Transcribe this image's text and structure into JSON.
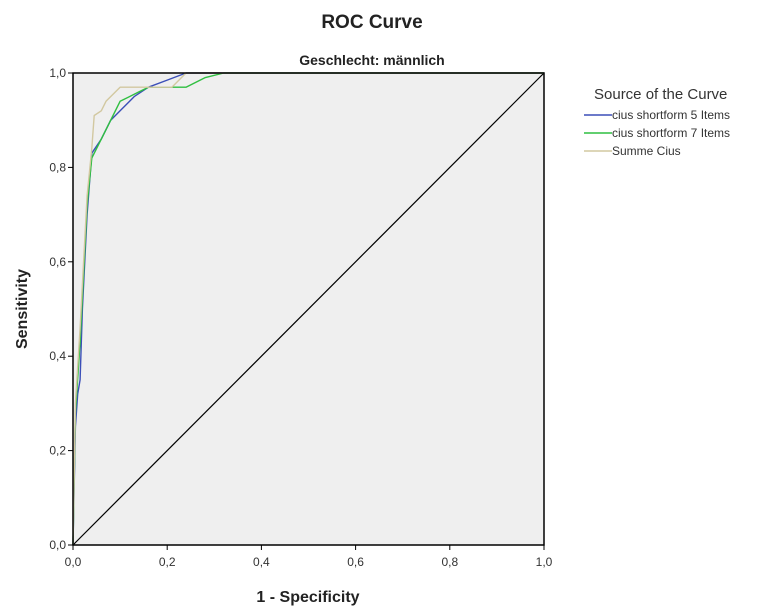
{
  "colors": {
    "plot_background": "#efefef",
    "frame": "#000000",
    "reference_line": "#000000"
  },
  "chart_data": {
    "type": "line",
    "title": "ROC Curve",
    "subtitle": "Geschlecht: männlich",
    "xlabel": "1 - Specificity",
    "ylabel": "Sensitivity",
    "xlim": [
      0,
      1
    ],
    "ylim": [
      0,
      1
    ],
    "x_ticks": [
      "0,0",
      "0,2",
      "0,4",
      "0,6",
      "0,8",
      "1,0"
    ],
    "y_ticks": [
      "0,0",
      "0,2",
      "0,4",
      "0,6",
      "0,8",
      "1,0"
    ],
    "grid": false,
    "diagonal_reference": true,
    "legend": {
      "title": "Source of the Curve",
      "position": "right"
    },
    "series": [
      {
        "name": "cius shortform 5 Items",
        "color": "#3b4fb8",
        "points": [
          [
            0,
            0
          ],
          [
            0.005,
            0.25
          ],
          [
            0.01,
            0.32
          ],
          [
            0.015,
            0.35
          ],
          [
            0.02,
            0.5
          ],
          [
            0.03,
            0.7
          ],
          [
            0.04,
            0.83
          ],
          [
            0.06,
            0.86
          ],
          [
            0.08,
            0.9
          ],
          [
            0.1,
            0.92
          ],
          [
            0.13,
            0.95
          ],
          [
            0.16,
            0.97
          ],
          [
            0.2,
            0.985
          ],
          [
            0.24,
            1.0
          ],
          [
            1.0,
            1.0
          ]
        ]
      },
      {
        "name": "cius shortform 7 Items",
        "color": "#2fbf40",
        "points": [
          [
            0,
            0
          ],
          [
            0.005,
            0.28
          ],
          [
            0.015,
            0.43
          ],
          [
            0.03,
            0.72
          ],
          [
            0.04,
            0.82
          ],
          [
            0.06,
            0.86
          ],
          [
            0.08,
            0.9
          ],
          [
            0.1,
            0.94
          ],
          [
            0.14,
            0.96
          ],
          [
            0.16,
            0.97
          ],
          [
            0.2,
            0.97
          ],
          [
            0.24,
            0.97
          ],
          [
            0.28,
            0.99
          ],
          [
            0.32,
            1.0
          ],
          [
            1.0,
            1.0
          ]
        ]
      },
      {
        "name": "Summe Cius",
        "color": "#d2c8a0",
        "points": [
          [
            0,
            0
          ],
          [
            0.005,
            0.3
          ],
          [
            0.015,
            0.46
          ],
          [
            0.03,
            0.74
          ],
          [
            0.04,
            0.84
          ],
          [
            0.045,
            0.91
          ],
          [
            0.06,
            0.92
          ],
          [
            0.07,
            0.94
          ],
          [
            0.1,
            0.97
          ],
          [
            0.14,
            0.97
          ],
          [
            0.21,
            0.97
          ],
          [
            0.24,
            1.0
          ],
          [
            1.0,
            1.0
          ]
        ]
      }
    ]
  }
}
